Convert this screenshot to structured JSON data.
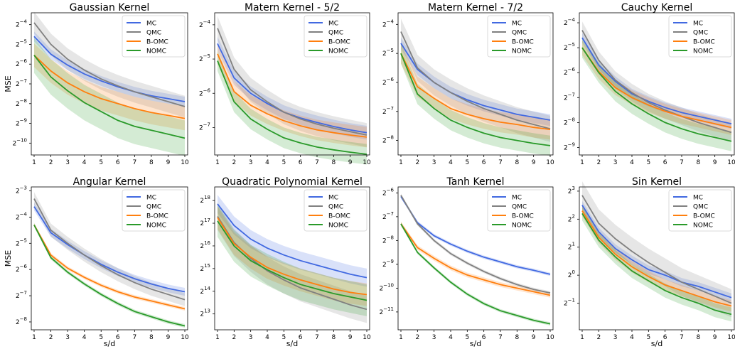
{
  "figure": {
    "ylabel": "MSE",
    "xlabel": "s/d"
  },
  "legend_labels": [
    "MC",
    "QMC",
    "B-OMC",
    "NOMC"
  ],
  "colors": {
    "MC": "#4169e1",
    "QMC": "#808080",
    "B-OMC": "#ff7f0e",
    "NOMC": "#2a9a2a"
  },
  "chart_data": [
    {
      "type": "line",
      "title": "Gaussian Kernel",
      "ylabel": "MSE",
      "xlabel": "",
      "y_scale": "log2",
      "ylim_log2": [
        -10.6,
        -3.4
      ],
      "y_ticks_log2": [
        -4,
        -5,
        -6,
        -7,
        -8,
        -9,
        -10
      ],
      "x": [
        1,
        2,
        3,
        4,
        5,
        6,
        7,
        8,
        9,
        10
      ],
      "legend": "top-right",
      "series": [
        {
          "name": "MC",
          "log2_mean": [
            -4.6,
            -5.5,
            -6.05,
            -6.5,
            -6.85,
            -7.15,
            -7.4,
            -7.6,
            -7.75,
            -7.9
          ],
          "log2_band": 0.25
        },
        {
          "name": "QMC",
          "log2_mean": [
            -3.9,
            -5.0,
            -5.75,
            -6.3,
            -6.75,
            -7.1,
            -7.4,
            -7.65,
            -7.9,
            -8.15
          ],
          "log2_band": 0.55
        },
        {
          "name": "B-OMC",
          "log2_mean": [
            -5.55,
            -6.35,
            -6.95,
            -7.4,
            -7.75,
            -8.0,
            -8.25,
            -8.45,
            -8.6,
            -8.75
          ],
          "log2_band": 0.6
        },
        {
          "name": "NOMC",
          "log2_mean": [
            -5.55,
            -6.65,
            -7.35,
            -7.95,
            -8.4,
            -8.85,
            -9.15,
            -9.35,
            -9.55,
            -9.75
          ],
          "log2_band": 0.9
        }
      ]
    },
    {
      "type": "line",
      "title": "Matern Kernel - 5/2",
      "ylabel": "",
      "xlabel": "",
      "y_scale": "log2",
      "ylim_log2": [
        -7.8,
        -3.65
      ],
      "y_ticks_log2": [
        -4,
        -5,
        -6,
        -7
      ],
      "x": [
        1,
        2,
        3,
        4,
        5,
        6,
        7,
        8,
        9,
        10
      ],
      "legend": "top-right",
      "series": [
        {
          "name": "MC",
          "log2_mean": [
            -4.55,
            -5.55,
            -6.0,
            -6.3,
            -6.55,
            -6.72,
            -6.85,
            -6.97,
            -7.07,
            -7.15
          ],
          "log2_band": 0.2
        },
        {
          "name": "QMC",
          "log2_mean": [
            -4.1,
            -5.3,
            -5.9,
            -6.25,
            -6.55,
            -6.75,
            -6.9,
            -7.02,
            -7.12,
            -7.22
          ],
          "log2_band": 0.35
        },
        {
          "name": "B-OMC",
          "log2_mean": [
            -4.85,
            -5.95,
            -6.35,
            -6.6,
            -6.8,
            -6.95,
            -7.07,
            -7.15,
            -7.22,
            -7.28
          ],
          "log2_band": 0.3
        },
        {
          "name": "NOMC",
          "log2_mean": [
            -5.05,
            -6.25,
            -6.75,
            -7.05,
            -7.3,
            -7.45,
            -7.57,
            -7.65,
            -7.72,
            -7.78
          ],
          "log2_band": 0.3
        }
      ]
    },
    {
      "type": "line",
      "title": "Matern Kernel - 7/2",
      "ylabel": "",
      "xlabel": "",
      "y_scale": "log2",
      "ylim_log2": [
        -8.5,
        -3.6
      ],
      "y_ticks_log2": [
        -4,
        -5,
        -6,
        -7,
        -8
      ],
      "x": [
        1,
        2,
        3,
        4,
        5,
        6,
        7,
        8,
        9,
        10
      ],
      "legend": "top-right",
      "series": [
        {
          "name": "MC",
          "log2_mean": [
            -4.65,
            -5.55,
            -6.0,
            -6.35,
            -6.6,
            -6.8,
            -6.95,
            -7.1,
            -7.2,
            -7.3
          ],
          "log2_band": 0.2
        },
        {
          "name": "QMC",
          "log2_mean": [
            -4.25,
            -5.5,
            -6.0,
            -6.35,
            -6.65,
            -6.9,
            -7.1,
            -7.3,
            -7.45,
            -7.6
          ],
          "log2_band": 0.45
        },
        {
          "name": "B-OMC",
          "log2_mean": [
            -5.0,
            -6.15,
            -6.55,
            -6.9,
            -7.1,
            -7.25,
            -7.37,
            -7.45,
            -7.55,
            -7.62
          ],
          "log2_band": 0.35
        },
        {
          "name": "NOMC",
          "log2_mean": [
            -5.0,
            -6.4,
            -6.9,
            -7.3,
            -7.55,
            -7.75,
            -7.9,
            -8.0,
            -8.1,
            -8.18
          ],
          "log2_band": 0.35
        }
      ]
    },
    {
      "type": "line",
      "title": "Cauchy Kernel",
      "ylabel": "",
      "xlabel": "",
      "y_scale": "log2",
      "ylim_log2": [
        -9.3,
        -3.6
      ],
      "y_ticks_log2": [
        -4,
        -5,
        -6,
        -7,
        -8,
        -9
      ],
      "x": [
        1,
        2,
        3,
        4,
        5,
        6,
        7,
        8,
        9,
        10
      ],
      "legend": "top-right",
      "series": [
        {
          "name": "MC",
          "log2_mean": [
            -4.6,
            -5.7,
            -6.35,
            -6.85,
            -7.15,
            -7.4,
            -7.6,
            -7.75,
            -7.9,
            -8.05
          ],
          "log2_band": 0.2
        },
        {
          "name": "QMC",
          "log2_mean": [
            -4.3,
            -5.5,
            -6.3,
            -6.8,
            -7.2,
            -7.5,
            -7.75,
            -8.0,
            -8.2,
            -8.4
          ],
          "log2_band": 0.35
        },
        {
          "name": "B-OMC",
          "log2_mean": [
            -5.0,
            -5.95,
            -6.6,
            -7.0,
            -7.3,
            -7.55,
            -7.75,
            -7.9,
            -8.05,
            -8.2
          ],
          "log2_band": 0.3
        },
        {
          "name": "NOMC",
          "log2_mean": [
            -5.0,
            -6.0,
            -6.75,
            -7.25,
            -7.65,
            -8.0,
            -8.25,
            -8.45,
            -8.6,
            -8.75
          ],
          "log2_band": 0.4
        }
      ]
    },
    {
      "type": "line",
      "title": "Angular Kernel",
      "ylabel": "MSE",
      "xlabel": "s/d",
      "y_scale": "log2",
      "ylim_log2": [
        -8.3,
        -2.85
      ],
      "y_ticks_log2": [
        -3,
        -4,
        -5,
        -6,
        -7,
        -8
      ],
      "x": [
        1,
        2,
        3,
        4,
        5,
        6,
        7,
        8,
        9,
        10
      ],
      "legend": "top-right",
      "series": [
        {
          "name": "MC",
          "log2_mean": [
            -3.6,
            -4.6,
            -5.05,
            -5.45,
            -5.8,
            -6.1,
            -6.35,
            -6.55,
            -6.72,
            -6.85
          ],
          "log2_band": 0.15
        },
        {
          "name": "QMC",
          "log2_mean": [
            -3.3,
            -4.5,
            -5.0,
            -5.45,
            -5.85,
            -6.2,
            -6.5,
            -6.75,
            -6.95,
            -7.15
          ],
          "log2_band": 0.25
        },
        {
          "name": "B-OMC",
          "log2_mean": [
            -4.3,
            -5.45,
            -5.95,
            -6.3,
            -6.6,
            -6.85,
            -7.05,
            -7.2,
            -7.35,
            -7.5
          ],
          "log2_band": 0.07
        },
        {
          "name": "NOMC",
          "log2_mean": [
            -4.3,
            -5.55,
            -6.1,
            -6.55,
            -6.95,
            -7.3,
            -7.6,
            -7.8,
            -8.0,
            -8.15
          ],
          "log2_band": 0.07
        }
      ]
    },
    {
      "type": "line",
      "title": "Quadratic Polynomial Kernel",
      "ylabel": "",
      "xlabel": "s/d",
      "y_scale": "log2",
      "ylim_log2": [
        12.3,
        18.6
      ],
      "y_ticks_log2": [
        18,
        17,
        16,
        15,
        14,
        13
      ],
      "x": [
        1,
        2,
        3,
        4,
        5,
        6,
        7,
        8,
        9,
        10
      ],
      "legend": "top-right",
      "series": [
        {
          "name": "MC",
          "log2_mean": [
            17.85,
            16.9,
            16.3,
            15.9,
            15.6,
            15.35,
            15.15,
            14.95,
            14.75,
            14.6
          ],
          "log2_band": 0.4
        },
        {
          "name": "QMC",
          "log2_mean": [
            17.3,
            16.15,
            15.45,
            14.9,
            14.5,
            14.15,
            13.9,
            13.65,
            13.4,
            13.2
          ],
          "log2_band": 0.6
        },
        {
          "name": "B-OMC",
          "log2_mean": [
            17.25,
            16.1,
            15.5,
            15.05,
            14.75,
            14.5,
            14.3,
            14.1,
            13.95,
            13.85
          ],
          "log2_band": 0.5
        },
        {
          "name": "NOMC",
          "log2_mean": [
            17.1,
            16.0,
            15.35,
            14.95,
            14.6,
            14.3,
            14.1,
            13.9,
            13.75,
            13.6
          ],
          "log2_band": 0.7
        }
      ]
    },
    {
      "type": "line",
      "title": "Tanh Kernel",
      "ylabel": "",
      "xlabel": "s/d",
      "y_scale": "log2",
      "ylim_log2": [
        -11.75,
        -5.75
      ],
      "y_ticks_log2": [
        -6,
        -7,
        -8,
        -9,
        -10,
        -11
      ],
      "x": [
        1,
        2,
        3,
        4,
        5,
        6,
        7,
        8,
        9,
        10
      ],
      "legend": "top-right",
      "series": [
        {
          "name": "MC",
          "log2_mean": [
            -6.15,
            -7.25,
            -7.8,
            -8.15,
            -8.45,
            -8.7,
            -8.9,
            -9.1,
            -9.25,
            -9.42
          ],
          "log2_band": 0.07
        },
        {
          "name": "QMC",
          "log2_mean": [
            -6.1,
            -7.3,
            -8.0,
            -8.55,
            -8.95,
            -9.3,
            -9.6,
            -9.85,
            -10.05,
            -10.2
          ],
          "log2_band": 0.07
        },
        {
          "name": "B-OMC",
          "log2_mean": [
            -7.3,
            -8.3,
            -8.75,
            -9.15,
            -9.45,
            -9.65,
            -9.85,
            -10.0,
            -10.15,
            -10.3
          ],
          "log2_band": 0.1
        },
        {
          "name": "NOMC",
          "log2_mean": [
            -7.3,
            -8.5,
            -9.15,
            -9.75,
            -10.25,
            -10.65,
            -10.95,
            -11.15,
            -11.35,
            -11.5
          ],
          "log2_band": 0.07
        }
      ]
    },
    {
      "type": "line",
      "title": "Sin Kernel",
      "ylabel": "",
      "xlabel": "s/d",
      "y_scale": "log2",
      "ylim_log2": [
        -1.95,
        3.15
      ],
      "y_ticks_log2": [
        3,
        2,
        1,
        0,
        -1
      ],
      "x": [
        1,
        2,
        3,
        4,
        5,
        6,
        7,
        8,
        9,
        10
      ],
      "legend": "top-right",
      "series": [
        {
          "name": "MC",
          "log2_mean": [
            2.5,
            1.55,
            0.95,
            0.55,
            0.2,
            0.0,
            -0.25,
            -0.4,
            -0.6,
            -0.8
          ],
          "log2_band": 0.15
        },
        {
          "name": "QMC",
          "log2_mean": [
            2.85,
            1.85,
            1.3,
            0.85,
            0.45,
            0.1,
            -0.25,
            -0.5,
            -0.75,
            -1.0
          ],
          "log2_band": 0.5
        },
        {
          "name": "B-OMC",
          "log2_mean": [
            2.3,
            1.35,
            0.75,
            0.3,
            -0.05,
            -0.35,
            -0.55,
            -0.75,
            -0.95,
            -1.1
          ],
          "log2_band": 0.2
        },
        {
          "name": "NOMC",
          "log2_mean": [
            2.2,
            1.25,
            0.65,
            0.15,
            -0.2,
            -0.55,
            -0.8,
            -1.0,
            -1.25,
            -1.4
          ],
          "log2_band": 0.25
        }
      ]
    }
  ]
}
